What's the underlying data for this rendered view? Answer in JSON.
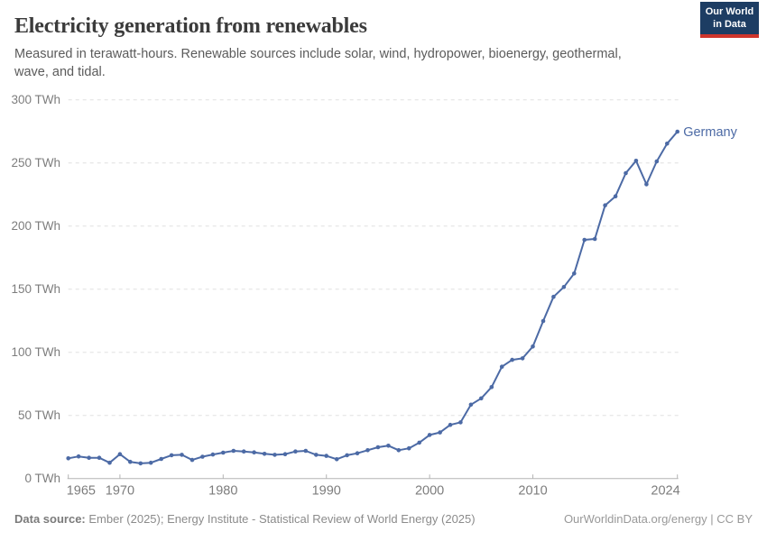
{
  "header": {
    "title": "Electricity generation from renewables",
    "subtitle": "Measured in terawatt-hours. Renewable sources include solar, wind, hydropower, bioenergy, geothermal, wave, and tidal.",
    "logo": {
      "line1": "Our World",
      "line2": "in Data"
    }
  },
  "chart_data": {
    "type": "line",
    "title": "Electricity generation from renewables",
    "unit": "TWh",
    "xlabel": "",
    "ylabel": "",
    "xlim": [
      1965,
      2024
    ],
    "ylim": [
      0,
      300
    ],
    "grid": "horizontal-dashed",
    "legend_position": "end-of-line-label",
    "yticks": [
      0,
      50,
      100,
      150,
      200,
      250,
      300
    ],
    "ytick_suffix": " TWh",
    "xticks": [
      1965,
      1970,
      1980,
      1990,
      2000,
      2010,
      2024
    ],
    "series": [
      {
        "name": "Germany",
        "color": "#4c6aa5",
        "x": [
          1965,
          1966,
          1967,
          1968,
          1969,
          1970,
          1971,
          1972,
          1973,
          1974,
          1975,
          1976,
          1977,
          1978,
          1979,
          1980,
          1981,
          1982,
          1983,
          1984,
          1985,
          1986,
          1987,
          1988,
          1989,
          1990,
          1991,
          1992,
          1993,
          1994,
          1995,
          1996,
          1997,
          1998,
          1999,
          2000,
          2001,
          2002,
          2003,
          2004,
          2005,
          2006,
          2007,
          2008,
          2009,
          2010,
          2011,
          2012,
          2013,
          2014,
          2015,
          2016,
          2017,
          2018,
          2019,
          2020,
          2021,
          2022,
          2023,
          2024
        ],
        "values": [
          16.0,
          17.5,
          16.4,
          16.4,
          12.5,
          19.3,
          13.2,
          12.0,
          12.5,
          15.5,
          18.4,
          18.8,
          14.7,
          17.3,
          19.0,
          20.5,
          21.9,
          21.4,
          20.7,
          19.6,
          18.8,
          19.3,
          21.4,
          21.9,
          18.8,
          17.9,
          15.3,
          18.4,
          20.0,
          22.4,
          24.8,
          26.0,
          22.4,
          23.9,
          28.4,
          34.5,
          36.5,
          42.5,
          44.5,
          58.5,
          63.5,
          72.4,
          88.6,
          94.0,
          95.2,
          104.6,
          124.8,
          143.9,
          151.7,
          162.4,
          189.1,
          189.8,
          216.4,
          223.6,
          241.9,
          251.7,
          233.1,
          251.2,
          265.3,
          274.8
        ]
      }
    ]
  },
  "colors": {
    "series_blue": "#4c6aa5",
    "gridline": "#e0e0e0",
    "axis": "#b3b3b3",
    "tick_label": "#7d7d7d",
    "logo_navy": "#1d3d63",
    "logo_red": "#cf352c"
  },
  "footer": {
    "source_label": "Data source:",
    "source_text": "Ember (2025); Energy Institute - Statistical Review of World Energy (2025)",
    "attribution": "OurWorldinData.org/energy | CC BY"
  }
}
